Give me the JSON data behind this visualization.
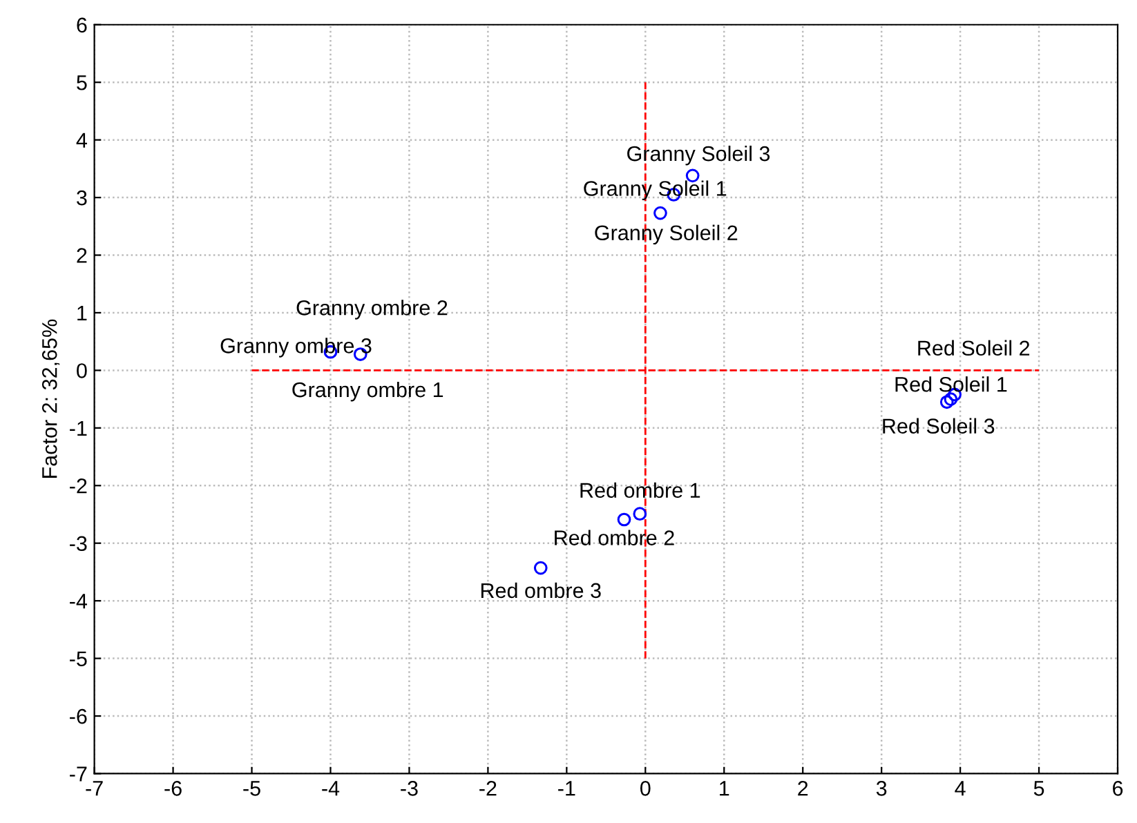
{
  "chart_data": {
    "type": "scatter",
    "ylabel": "Factor 2: 32,65%",
    "xlim": [
      -7,
      6
    ],
    "ylim": [
      -7,
      6
    ],
    "xticks": [
      -7,
      -6,
      -5,
      -4,
      -3,
      -2,
      -1,
      0,
      1,
      2,
      3,
      4,
      5,
      6
    ],
    "yticks": [
      -7,
      -6,
      -5,
      -4,
      -3,
      -2,
      -1,
      0,
      1,
      2,
      3,
      4,
      5,
      6
    ],
    "grid": true,
    "series": [
      {
        "marker": "circle",
        "color": "#0000ff",
        "x": [
          0.6,
          0.36,
          0.19,
          null,
          -4.0,
          -3.62,
          3.88,
          3.93,
          3.83,
          -0.07,
          -0.27,
          -1.33
        ],
        "values": [
          3.38,
          3.05,
          2.73,
          null,
          0.32,
          0.28,
          -0.5,
          -0.42,
          -0.55,
          -2.49,
          -2.59,
          -3.43
        ]
      },
      {
        "type": "line",
        "marker": "none",
        "color": "#ff0000",
        "line_style": "dashed",
        "x": [
          -5,
          5
        ],
        "values": [
          0,
          0
        ]
      },
      {
        "type": "line",
        "marker": "none",
        "color": "#ff0000",
        "line_style": "dashed",
        "x": [
          0,
          0
        ],
        "values": [
          -5,
          5
        ]
      }
    ],
    "annotations": [
      {
        "text": "Granny Soleil 3",
        "x": 0.6,
        "y": 3.38
      },
      {
        "text": "Granny Soleil 1",
        "x": 0.36,
        "y": 3.05
      },
      {
        "text": "Granny Soleil 2",
        "x": 0.19,
        "y": 2.73
      },
      {
        "text": "Granny ombre 2",
        "x": -3.62,
        "y": 0.28
      },
      {
        "text": "Granny ombre 3",
        "x": -4.0,
        "y": 0.32
      },
      {
        "text": "Granny ombre 1",
        "x": -3.62,
        "y": 0.28
      },
      {
        "text": "Red Soleil 2",
        "x": 3.93,
        "y": -0.42
      },
      {
        "text": "Red Soleil 1",
        "x": 3.88,
        "y": -0.5
      },
      {
        "text": "Red Soleil 3",
        "x": 3.83,
        "y": -0.55
      },
      {
        "text": "Red ombre 1",
        "x": -0.07,
        "y": -2.49
      },
      {
        "text": "Red ombre 2",
        "x": -0.27,
        "y": -2.59
      },
      {
        "text": "Red ombre 3",
        "x": -1.33,
        "y": -3.43
      }
    ]
  }
}
